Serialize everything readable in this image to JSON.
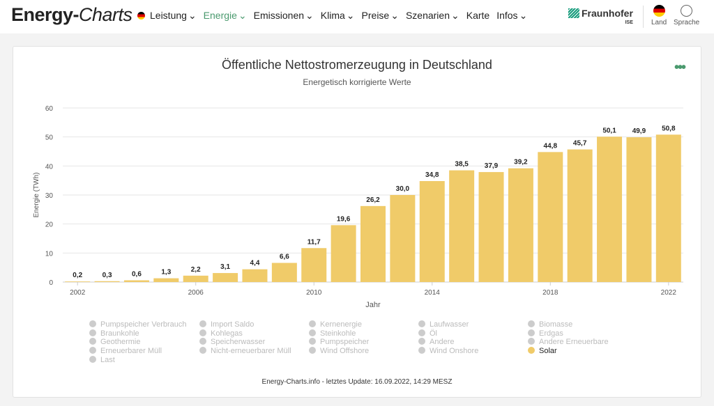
{
  "header": {
    "logo_a": "Energy-",
    "logo_b": "Charts",
    "nav": [
      "Leistung",
      "Energie",
      "Emissionen",
      "Klima",
      "Preise",
      "Szenarien",
      "Karte",
      "Infos"
    ],
    "nav_dropdown": [
      true,
      true,
      true,
      true,
      true,
      true,
      false,
      true
    ],
    "active": "Energie",
    "brand": "Fraunhofer",
    "brand_sub": "ISE",
    "land": "Land",
    "sprache": "Sprache"
  },
  "colors": {
    "accent": "#4a9a6e",
    "bar": "#f0cb69",
    "legend_inactive": "#cccccc"
  },
  "legend": [
    [
      "Pumpspeicher Verbrauch",
      "Braunkohle",
      "Geothermie",
      "Erneuerbarer Müll",
      "Last"
    ],
    [
      "Import Saldo",
      "Kohlegas",
      "Speicherwasser",
      "Nicht-erneuerbarer Müll"
    ],
    [
      "Kernenergie",
      "Steinkohle",
      "Pumpspeicher",
      "Wind Offshore"
    ],
    [
      "Laufwasser",
      "Öl",
      "Andere",
      "Wind Onshore"
    ],
    [
      "Biomasse",
      "Erdgas",
      "Andere Erneuerbare",
      "Solar"
    ]
  ],
  "legend_active": "Solar",
  "footer": "Energy-Charts.info - letztes Update: 16.09.2022, 14:29 MESZ",
  "chart_data": {
    "type": "bar",
    "title": "Öffentliche Nettostromerzeugung in Deutschland",
    "subtitle": "Energetisch korrigierte Werte",
    "xlabel": "Jahr",
    "ylabel": "Energie (TWh)",
    "ylim": [
      0,
      60
    ],
    "yticks": [
      0,
      10,
      20,
      30,
      40,
      50,
      60
    ],
    "xticks": [
      "2002",
      "2006",
      "2010",
      "2014",
      "2018",
      "2022"
    ],
    "grid": true,
    "categories": [
      2002,
      2003,
      2004,
      2005,
      2006,
      2007,
      2008,
      2009,
      2010,
      2011,
      2012,
      2013,
      2014,
      2015,
      2016,
      2017,
      2018,
      2019,
      2020,
      2021,
      2022
    ],
    "series": [
      {
        "name": "Solar",
        "values": [
          0.2,
          0.3,
          0.6,
          1.3,
          2.2,
          3.1,
          4.4,
          6.6,
          11.7,
          19.6,
          26.2,
          30.0,
          34.8,
          38.5,
          37.9,
          39.2,
          44.8,
          45.7,
          50.1,
          49.9,
          50.8
        ]
      }
    ]
  }
}
